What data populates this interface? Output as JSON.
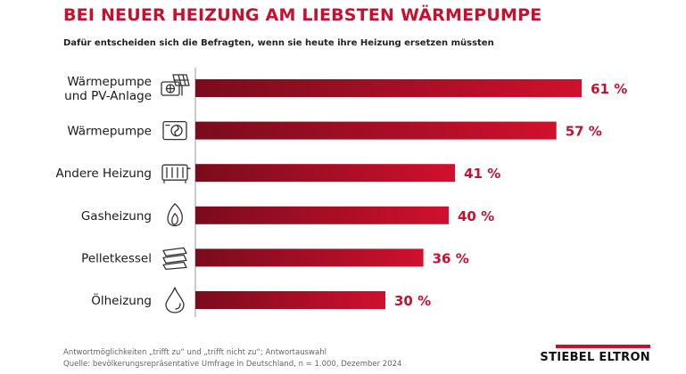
{
  "title": "BEI NEUER HEIZUNG AM LIEBSTEN WÄRMEPUMPE",
  "subtitle": "Dafür entscheiden sich die Befragten, wenn sie heute ihre Heizung ersetzen müssten",
  "footnote_1": "Antwortmöglichkeiten „trifft zu“ und „trifft nicht zu“; Antwortauswahl",
  "footnote_2": "Quelle: bevölkerungsrepräsentative Umfrage in Deutschland, n = 1.000, Dezember 2024",
  "logo_text": "STIEBEL ELTRON",
  "colors": {
    "accent": "#c8102e",
    "bar_dark": "#7a0c1c",
    "bar_light": "#d0102e"
  },
  "chart_data": {
    "type": "bar",
    "orientation": "horizontal",
    "categories": [
      [
        "Wärmepumpe",
        "und PV-Anlage"
      ],
      [
        "Wärmepumpe"
      ],
      [
        "Andere Heizung"
      ],
      [
        "Gasheizung"
      ],
      [
        "Pelletkessel"
      ],
      [
        "Ölheizung"
      ]
    ],
    "icons": [
      "heat-pump-pv-icon",
      "heat-pump-icon",
      "radiator-icon",
      "gas-flame-icon",
      "pellet-icon",
      "oil-drop-icon"
    ],
    "values": [
      61,
      57,
      41,
      40,
      36,
      30
    ],
    "value_labels": [
      "61 %",
      "57 %",
      "41 %",
      "40 %",
      "36 %",
      "30 %"
    ],
    "unit": "%",
    "xlim": [
      0,
      100
    ],
    "grid": false,
    "legend": "none"
  }
}
